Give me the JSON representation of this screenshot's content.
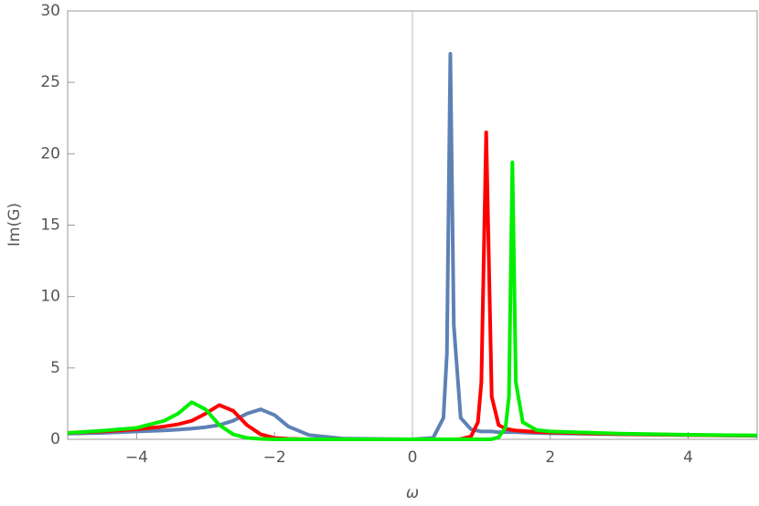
{
  "chart_data": {
    "type": "line",
    "x_label": "ω",
    "y_label": "Im(G)",
    "x": [
      -5,
      -4.5,
      -4,
      -3.6,
      -3.4,
      -3.2,
      -3.0,
      -2.8,
      -2.6,
      -2.4,
      -2.2,
      -2.0,
      -1.8,
      -1.5,
      -1,
      0,
      0.3,
      0.45,
      0.5,
      0.55,
      0.6,
      0.7,
      0.85,
      0.95,
      1.0,
      1.07,
      1.15,
      1.25,
      1.35,
      1.4,
      1.45,
      1.5,
      1.6,
      1.8,
      2,
      3,
      4,
      5
    ],
    "series": [
      {
        "color": "#5e81b5",
        "values": [
          0.4,
          0.45,
          0.55,
          0.62,
          0.68,
          0.75,
          0.85,
          1.0,
          1.3,
          1.8,
          2.1,
          1.7,
          0.9,
          0.3,
          0.05,
          0,
          0.1,
          1.5,
          6,
          27,
          8,
          1.5,
          0.7,
          0.6,
          0.55,
          0.55,
          0.55,
          0.5,
          0.5,
          0.5,
          0.5,
          0.5,
          0.48,
          0.45,
          0.42,
          0.35,
          0.3,
          0.25
        ]
      },
      {
        "color": "#ff0000",
        "values": [
          0.45,
          0.55,
          0.7,
          0.9,
          1.05,
          1.3,
          1.8,
          2.4,
          2.0,
          1.0,
          0.35,
          0.1,
          0.03,
          0,
          0,
          0,
          0,
          0,
          0,
          0,
          0,
          0.02,
          0.2,
          1.2,
          4,
          21.5,
          3,
          1.0,
          0.75,
          0.7,
          0.65,
          0.62,
          0.58,
          0.52,
          0.48,
          0.37,
          0.3,
          0.26
        ]
      },
      {
        "color": "#00ee00",
        "values": [
          0.45,
          0.6,
          0.8,
          1.3,
          1.8,
          2.6,
          2.1,
          1.0,
          0.35,
          0.1,
          0.03,
          0,
          0,
          0,
          0,
          0,
          0,
          0,
          0,
          0,
          0,
          0,
          0,
          0,
          0,
          0,
          0.01,
          0.15,
          0.8,
          3,
          19.4,
          4,
          1.2,
          0.65,
          0.55,
          0.4,
          0.32,
          0.27
        ]
      }
    ],
    "xlim": [
      -5,
      5
    ],
    "ylim": [
      0,
      30
    ],
    "xticks": [
      {
        "value": -4,
        "label": "−4"
      },
      {
        "value": -2,
        "label": "−2"
      },
      0,
      2,
      4
    ],
    "yticks": [
      0,
      5,
      10,
      15,
      20,
      25,
      30
    ],
    "grid": false
  }
}
